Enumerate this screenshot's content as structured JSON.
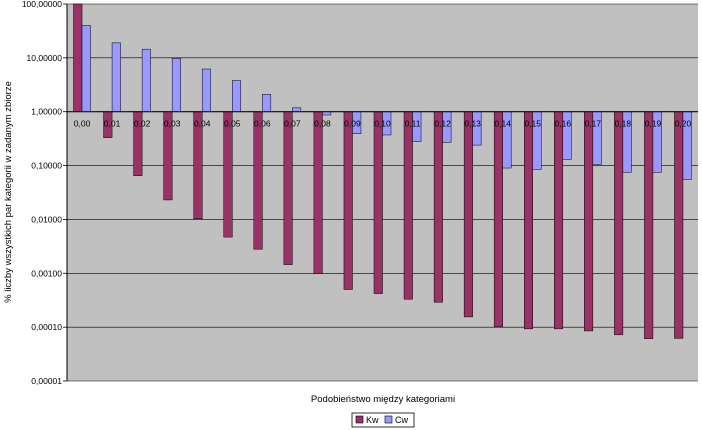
{
  "chart_data": {
    "type": "bar",
    "title": "",
    "xlabel": "Podobieństwo między kategoriami",
    "ylabel": "% liczby wszystkich par kategorii w zadanym zbiorze",
    "yscale": "log",
    "ylim": [
      1e-05,
      100
    ],
    "yticks": [
      100,
      10,
      1,
      0.1,
      0.01,
      0.001,
      0.0001,
      1e-05
    ],
    "ytick_labels": [
      "100,00000",
      "10,00000",
      "1,00000",
      "0,10000",
      "0,01000",
      "0,00100",
      "0,00010",
      "0,00001"
    ],
    "baseline": 1,
    "grid": true,
    "legend_position": "bottom-right",
    "categories": [
      "0,00",
      "0,01",
      "0,02",
      "0,03",
      "0,04",
      "0,05",
      "0,06",
      "0,07",
      "0,08",
      "0,09",
      "0,10",
      "0,11",
      "0,12",
      "0,13",
      "0,14",
      "0,15",
      "0,16",
      "0,17",
      "0,18",
      "0,19",
      "0,20"
    ],
    "series": [
      {
        "name": "Kw",
        "color": "#993366",
        "values": [
          100,
          0.33,
          0.065,
          0.023,
          0.0103,
          0.0047,
          0.0028,
          0.00145,
          0.00098,
          0.0005,
          0.00042,
          0.00033,
          0.00029,
          0.000155,
          0.000102,
          9.3e-05,
          9.3e-05,
          8.5e-05,
          7.2e-05,
          6.1e-05,
          6.2e-05
        ]
      },
      {
        "name": "Cw",
        "color": "#9999FF",
        "values": [
          40,
          19,
          14.5,
          9.8,
          6.2,
          3.8,
          2.1,
          1.18,
          0.87,
          0.39,
          0.37,
          0.28,
          0.27,
          0.24,
          0.09,
          0.085,
          0.13,
          0.105,
          0.075,
          0.075,
          0.055
        ]
      }
    ]
  }
}
